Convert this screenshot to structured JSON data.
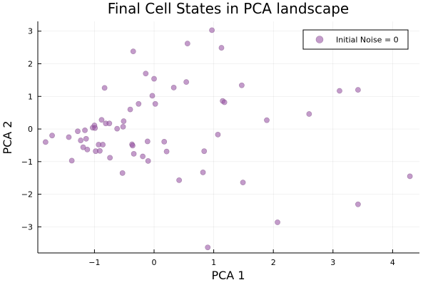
{
  "chart_data": {
    "type": "scatter",
    "title": "Final Cell States in PCA landscape",
    "xlabel": "PCA 1",
    "ylabel": "PCA 2",
    "xlim": [
      -1.95,
      4.45
    ],
    "ylim": [
      -3.8,
      3.3
    ],
    "xticks": [
      -1,
      0,
      1,
      2,
      3,
      4
    ],
    "xtick_labels": [
      "−1",
      "0",
      "1",
      "2",
      "3",
      "4"
    ],
    "yticks": [
      -3,
      -2,
      -1,
      0,
      1,
      2,
      3
    ],
    "ytick_labels": [
      "−3",
      "−2",
      "−1",
      "0",
      "1",
      "2",
      "3"
    ],
    "grid": true,
    "legend_position": "top-right",
    "series": [
      {
        "name": "Initial Noise = 0",
        "color": "#9b59a6",
        "points": [
          [
            -1.82,
            -0.4
          ],
          [
            -1.71,
            -0.2
          ],
          [
            -1.43,
            -0.25
          ],
          [
            -1.38,
            -0.97
          ],
          [
            -1.28,
            -0.07
          ],
          [
            -1.23,
            -0.35
          ],
          [
            -1.19,
            -0.56
          ],
          [
            -1.16,
            -0.04
          ],
          [
            -1.14,
            -0.3
          ],
          [
            -1.12,
            -0.63
          ],
          [
            -1.03,
            0.04
          ],
          [
            -1.0,
            0.11
          ],
          [
            -0.99,
            0.03
          ],
          [
            -0.98,
            -0.68
          ],
          [
            -0.93,
            -0.48
          ],
          [
            -0.91,
            -0.67
          ],
          [
            -0.88,
            0.28
          ],
          [
            -0.86,
            -0.48
          ],
          [
            -0.83,
            1.26
          ],
          [
            -0.81,
            0.17
          ],
          [
            -0.75,
            0.17
          ],
          [
            -0.74,
            -0.88
          ],
          [
            -0.62,
            0.01
          ],
          [
            -0.53,
            -1.35
          ],
          [
            -0.52,
            0.07
          ],
          [
            -0.51,
            0.24
          ],
          [
            -0.4,
            0.6
          ],
          [
            -0.37,
            -0.47
          ],
          [
            -0.36,
            -0.51
          ],
          [
            -0.35,
            2.38
          ],
          [
            -0.34,
            -0.76
          ],
          [
            -0.26,
            0.77
          ],
          [
            -0.19,
            -0.84
          ],
          [
            -0.14,
            1.7
          ],
          [
            -0.11,
            -0.38
          ],
          [
            -0.1,
            -0.98
          ],
          [
            -0.03,
            1.02
          ],
          [
            0.0,
            1.54
          ],
          [
            0.02,
            0.77
          ],
          [
            0.17,
            -0.39
          ],
          [
            0.21,
            -0.69
          ],
          [
            0.33,
            1.27
          ],
          [
            0.42,
            -1.57
          ],
          [
            0.54,
            1.44
          ],
          [
            0.56,
            2.62
          ],
          [
            0.82,
            -1.33
          ],
          [
            0.84,
            -0.68
          ],
          [
            0.9,
            -3.63
          ],
          [
            0.97,
            3.03
          ],
          [
            1.07,
            -0.17
          ],
          [
            1.13,
            2.49
          ],
          [
            1.15,
            0.86
          ],
          [
            1.18,
            0.82
          ],
          [
            1.47,
            1.34
          ],
          [
            1.49,
            -1.64
          ],
          [
            1.89,
            0.27
          ],
          [
            2.07,
            -2.86
          ],
          [
            2.6,
            0.46
          ],
          [
            3.11,
            1.17
          ],
          [
            3.42,
            1.2
          ],
          [
            3.42,
            -2.31
          ],
          [
            4.29,
            -1.45
          ]
        ]
      }
    ]
  }
}
